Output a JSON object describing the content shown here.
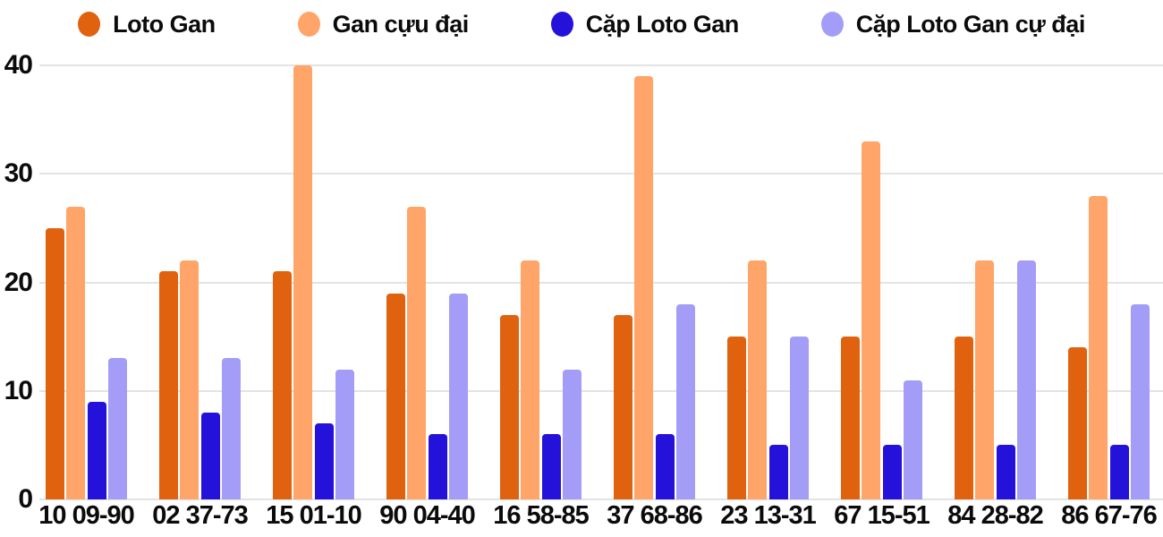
{
  "chart_data": {
    "type": "bar",
    "title": "",
    "categories": [
      "10 09-90",
      "02 37-73",
      "15 01-10",
      "90 04-40",
      "16 58-85",
      "37 68-86",
      "23 13-31",
      "67 15-51",
      "84 28-82",
      "86 67-76"
    ],
    "series": [
      {
        "name": "Loto Gan",
        "color": "#e0620f",
        "values": [
          25,
          21,
          21,
          19,
          17,
          17,
          15,
          15,
          15,
          14
        ]
      },
      {
        "name": "Gan cựu đại",
        "color": "#ffa569",
        "values": [
          27,
          22,
          40,
          27,
          22,
          39,
          22,
          33,
          22,
          28
        ]
      },
      {
        "name": "Cặp Loto Gan",
        "color": "#2412db",
        "values": [
          9,
          8,
          7,
          6,
          6,
          6,
          5,
          5,
          5,
          5
        ]
      },
      {
        "name": "Cặp Loto Gan cự đại",
        "color": "#a49df8",
        "values": [
          13,
          13,
          12,
          19,
          12,
          18,
          15,
          11,
          22,
          18
        ]
      }
    ],
    "ylim": [
      0,
      40
    ],
    "yticks": [
      0,
      10,
      20,
      30,
      40
    ],
    "grid": "horizontal",
    "legend_position": "top",
    "colors": {
      "background": "#ffffff",
      "gridline": "#e3e3e3",
      "text": "#0b0b0b"
    }
  }
}
